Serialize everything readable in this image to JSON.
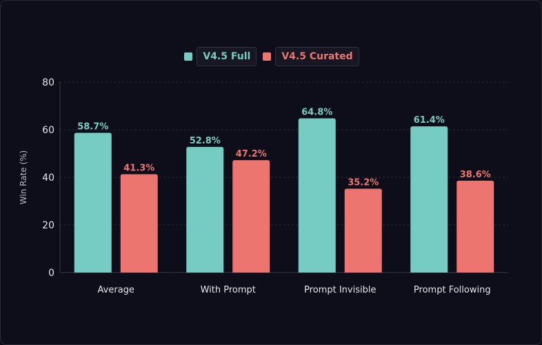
{
  "chart_data": {
    "type": "bar",
    "title": "",
    "xlabel": "",
    "ylabel": "Win Rate (%)",
    "ylim": [
      0,
      80
    ],
    "yticks": [
      "0",
      "20",
      "40",
      "60",
      "80"
    ],
    "grid": true,
    "legend_position": "top-center",
    "categories": [
      "Average",
      "With Prompt",
      "Prompt Invisible",
      "Prompt Following"
    ],
    "series": [
      {
        "name": "V4.5 Full",
        "color": "#76ccc2",
        "values": [
          58.7,
          52.8,
          64.8,
          61.4
        ],
        "labels": [
          "58.7%",
          "52.8%",
          "64.8%",
          "61.4%"
        ]
      },
      {
        "name": "V4.5 Curated",
        "color": "#ec7570",
        "values": [
          41.3,
          47.2,
          35.2,
          38.6
        ],
        "labels": [
          "41.3%",
          "47.2%",
          "35.2%",
          "38.6%"
        ]
      }
    ]
  },
  "colors": {
    "axis_text": "#e6e6ea",
    "grid": "#2a2b38",
    "axis_line": "#3a3b48"
  }
}
